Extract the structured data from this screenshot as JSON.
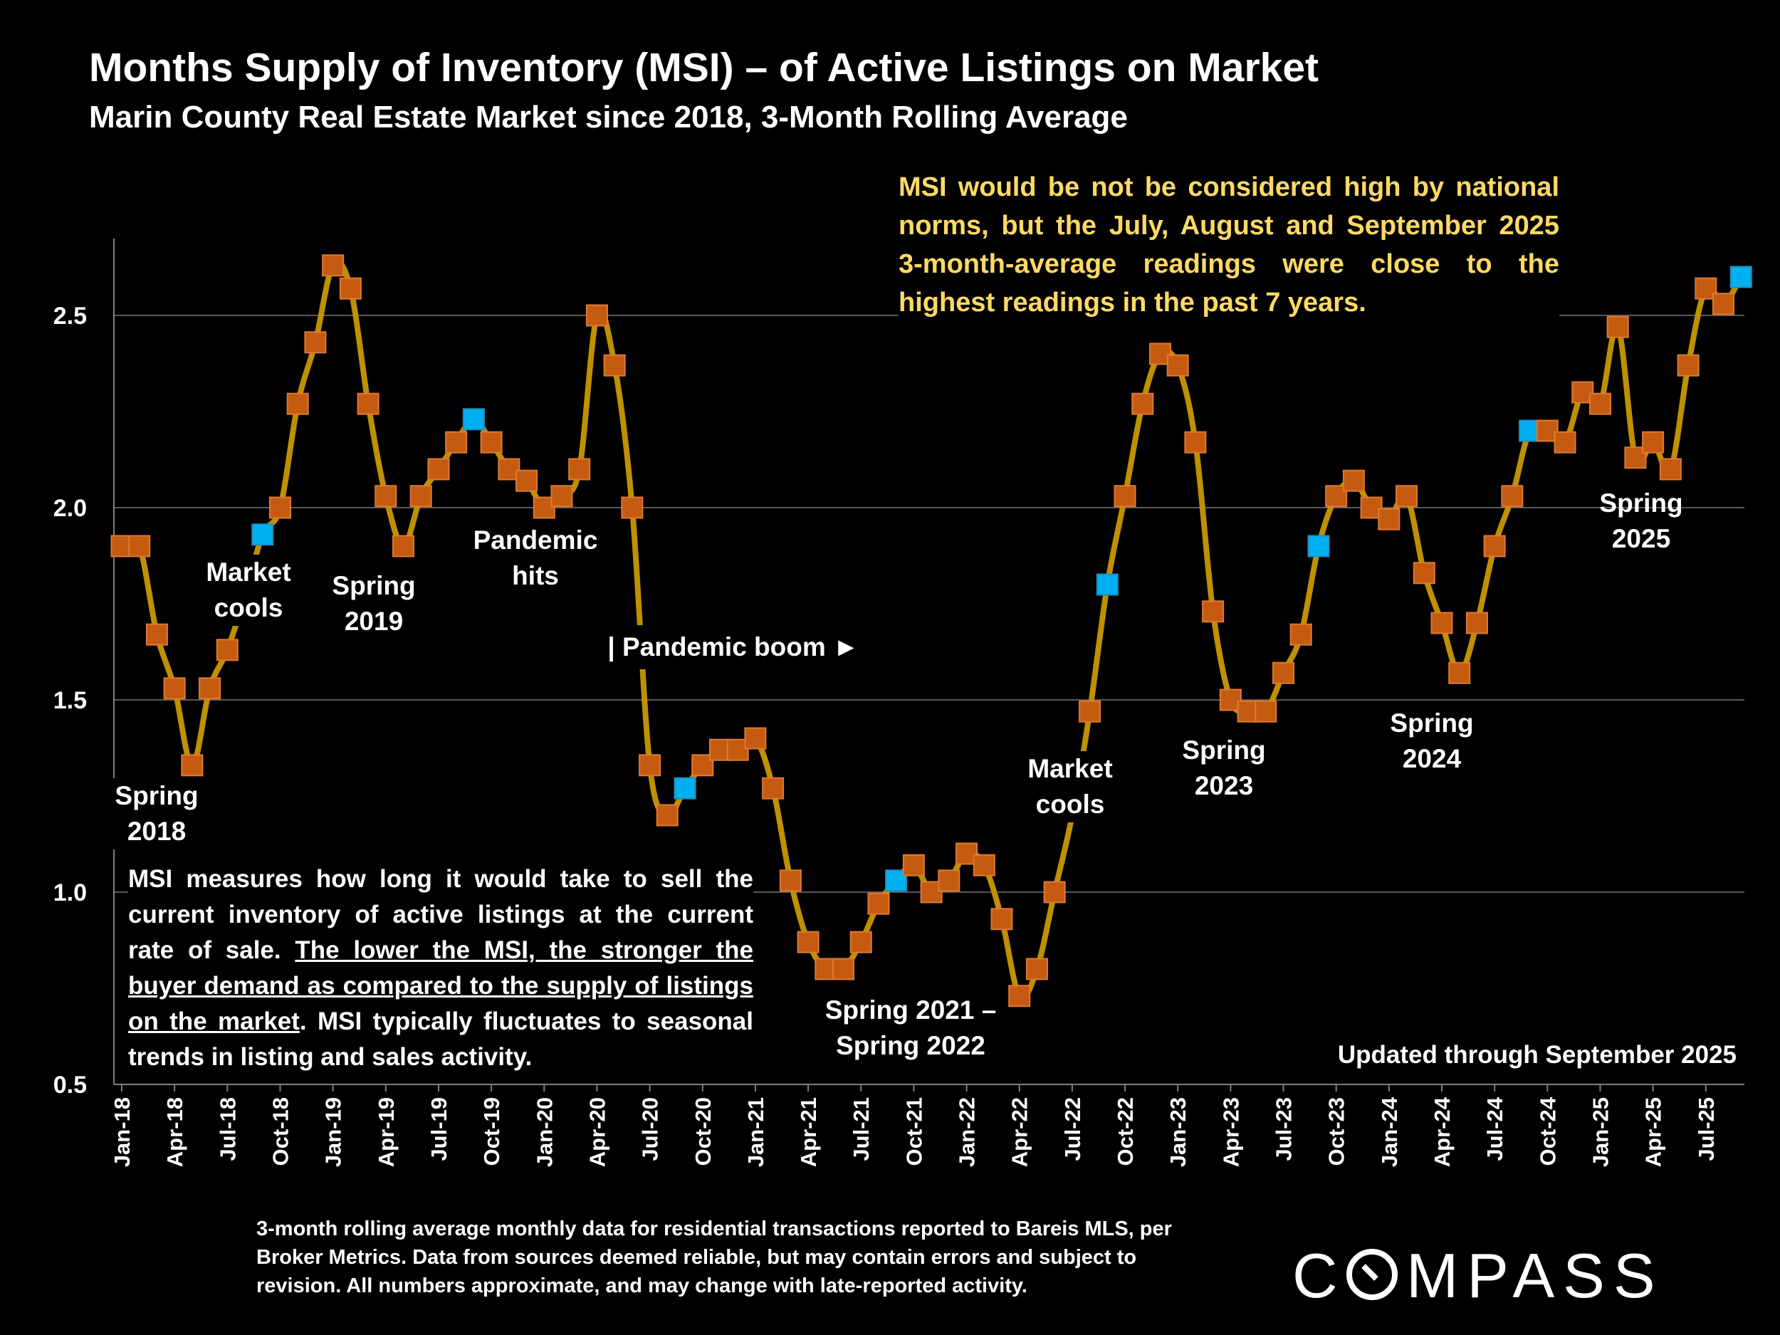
{
  "chart_data": {
    "type": "line",
    "title": "Months Supply of Inventory (MSI) – of Active Listings on Market",
    "subtitle": "Marin County Real Estate Market since 2018, 3-Month Rolling Average",
    "xlabel": "",
    "ylabel": "",
    "ylim": [
      0.5,
      2.7
    ],
    "yticks": [
      "0.5",
      "1.0",
      "1.5",
      "2.0",
      "2.5"
    ],
    "ytick_values": [
      0.5,
      1.0,
      1.5,
      2.0,
      2.5
    ],
    "grid": "horizontal",
    "line_color": "#BF9000",
    "marker_color": "#C55A11",
    "highlight_marker_color": "#00B0F0",
    "highlight_rule": "September readings",
    "xticks": [
      "Jan-18",
      "Apr-18",
      "Jul-18",
      "Oct-18",
      "Jan-19",
      "Apr-19",
      "Jul-19",
      "Oct-19",
      "Jan-20",
      "Apr-20",
      "Jul-20",
      "Oct-20",
      "Jan-21",
      "Apr-21",
      "Jul-21",
      "Oct-21",
      "Jan-22",
      "Apr-22",
      "Jul-22",
      "Oct-22",
      "Jan-23",
      "Apr-23",
      "Jul-23",
      "Oct-23",
      "Jan-24",
      "Apr-24",
      "Jul-24",
      "Oct-24",
      "Jan-25",
      "Apr-25",
      "Jul-25"
    ],
    "start_month": "Jan-18",
    "series": [
      {
        "values": [
          1.9,
          1.9,
          1.67,
          1.53,
          1.33,
          1.53,
          1.63,
          1.77,
          1.93,
          2.0,
          2.27,
          2.43,
          2.63,
          2.57,
          2.27,
          2.03,
          1.9,
          2.03,
          2.1,
          2.17,
          2.23,
          2.17,
          2.1,
          2.07,
          2.0,
          2.03,
          2.1,
          2.5,
          2.37,
          2.0,
          1.33,
          1.2,
          1.27,
          1.33,
          1.37,
          1.37,
          1.4,
          1.27,
          1.03,
          0.87,
          0.8,
          0.8,
          0.87,
          0.97,
          1.03,
          1.07,
          1.0,
          1.03,
          1.1,
          1.07,
          0.93,
          0.73,
          0.8,
          1.0,
          1.2,
          1.47,
          1.8,
          2.03,
          2.27,
          2.4,
          2.37,
          2.17,
          1.73,
          1.5,
          1.47,
          1.47,
          1.57,
          1.67,
          1.9,
          2.03,
          2.07,
          2.0,
          1.97,
          2.03,
          1.83,
          1.7,
          1.57,
          1.7,
          1.9,
          2.03,
          2.2,
          2.2,
          2.17,
          2.3,
          2.27,
          2.47,
          2.13,
          2.17,
          2.1,
          2.37,
          2.57,
          2.53,
          2.6
        ]
      }
    ],
    "annotations": {
      "spring2018": [
        "Spring",
        "2018"
      ],
      "cools2018": [
        "Market",
        "cools"
      ],
      "spring2019": [
        "Spring",
        "2019"
      ],
      "pandemic_hits": [
        "Pandemic",
        "hits"
      ],
      "pandemic_boom": "| Pandemic boom ►",
      "spring2122": [
        "Spring 2021 –",
        "Spring 2022"
      ],
      "cools2022": [
        "Market",
        "cools"
      ],
      "spring2023": [
        "Spring",
        "2023"
      ],
      "spring2024": [
        "Spring",
        "2024"
      ],
      "spring2025": [
        "Spring",
        "2025"
      ]
    }
  },
  "notes": {
    "top_lines": [
      "MSI would be not be considered high by national",
      "norms, but the July, August and September 2025",
      "3-month-average readings were close to the",
      "highest readings in the past 7 years."
    ],
    "bl_part1": "MSI measures how long it would take to sell the current inventory of active listings at the current rate of sale. ",
    "bl_underlined": "The lower the MSI, the stronger the buyer demand as compared to the supply of listings on the market",
    "bl_part2": ". MSI typically fluctuates to seasonal trends in listing and sales activity.",
    "updated": "Updated through September 2025",
    "footnote": "3-month rolling average monthly data for residential transactions reported to Bareis MLS, per Broker Metrics. Data from sources deemed reliable, but may contain errors and subject to revision. All numbers approximate, and may change with late-reported activity."
  },
  "logo": "COMPASS"
}
